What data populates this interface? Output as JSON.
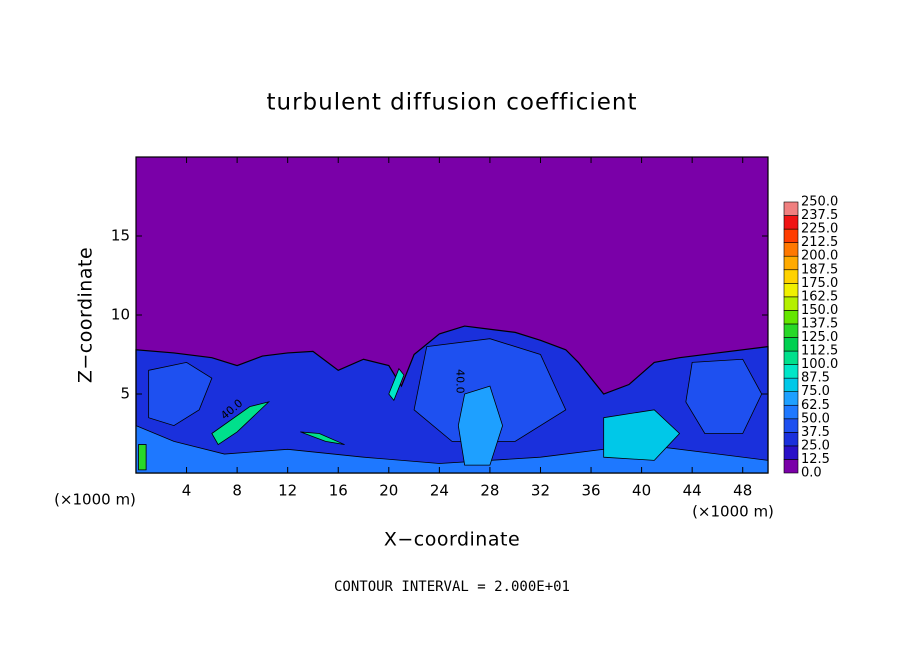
{
  "chart_data": {
    "type": "contour",
    "title": "turbulent diffusion coefficient",
    "xlabel": "X−coordinate",
    "ylabel": "Z−coordinate",
    "x_unit_left": "(×1000 m)",
    "x_unit_right": "(×1000 m)",
    "annotation": "CONTOUR INTERVAL = 2.000E+01",
    "xlim": [
      0,
      50
    ],
    "ylim": [
      0,
      20
    ],
    "xticks": [
      4,
      8,
      12,
      16,
      20,
      24,
      28,
      32,
      36,
      40,
      44,
      48
    ],
    "yticks": [
      5,
      10,
      15
    ],
    "contour_labels": [
      "40.0",
      "40.0"
    ],
    "colorbar": {
      "levels": [
        {
          "value": 0,
          "label": "0.0"
        },
        12.5,
        {
          "value": 25,
          "label": "25.0"
        },
        37.5,
        {
          "value": 50,
          "label": "50.0"
        },
        62.5,
        {
          "value": 75,
          "label": "75.0"
        },
        87.5,
        {
          "value": 100,
          "label": "100.0"
        },
        112.5,
        {
          "value": 125,
          "label": "125.0"
        },
        137.5,
        {
          "value": 150,
          "label": "150.0"
        },
        162.5,
        {
          "value": 175,
          "label": "175.0"
        },
        187.5,
        {
          "value": 200,
          "label": "200.0"
        },
        212.5,
        {
          "value": 225,
          "label": "225.0"
        },
        237.5,
        {
          "value": 250,
          "label": "250.0"
        }
      ],
      "colors": [
        "#7a00a8",
        "#2a10c8",
        "#1a30dc",
        "#1e50f0",
        "#1e78ff",
        "#1ea0ff",
        "#00c8e8",
        "#00e6c8",
        "#00e08c",
        "#00d050",
        "#28d828",
        "#64e600",
        "#b4f000",
        "#f0f000",
        "#ffd200",
        "#ffaa00",
        "#ff7800",
        "#ff3c00",
        "#f01414",
        "#f08080"
      ]
    }
  }
}
